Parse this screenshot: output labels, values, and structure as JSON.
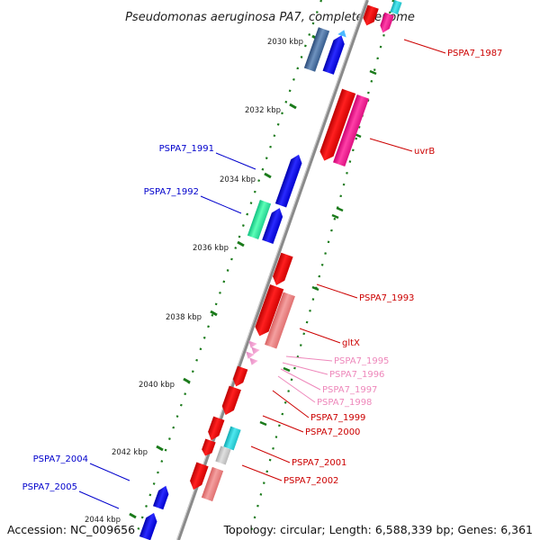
{
  "title": "Pseudomonas aeruginosa PA7, complete genome",
  "accession": "Accession: NC_009656",
  "topology": "Topology: circular; Length: 6,588,339 bp; Genes: 6,361",
  "ticks": [
    "2030 kbp",
    "2032 kbp",
    "2034 kbp",
    "2036 kbp",
    "2038 kbp",
    "2040 kbp",
    "2042 kbp",
    "2044 kbp"
  ],
  "colors": {
    "backbone": "#8a8a8a",
    "tick": "#1a7a1a",
    "forward_label": "#0000cc",
    "reverse_label": "#cc0000",
    "trna_label": "#ee88bb"
  },
  "labels_left": [
    {
      "text": "PSPA7_1991",
      "color": "#0000cc"
    },
    {
      "text": "PSPA7_1992",
      "color": "#0000cc"
    },
    {
      "text": "PSPA7_2004",
      "color": "#0000cc"
    },
    {
      "text": "PSPA7_2005",
      "color": "#0000cc"
    }
  ],
  "labels_right": [
    {
      "text": "PSPA7_1987",
      "color": "#cc0000"
    },
    {
      "text": "uvrB",
      "color": "#cc0000"
    },
    {
      "text": "PSPA7_1993",
      "color": "#cc0000"
    },
    {
      "text": "gltX",
      "color": "#cc0000"
    },
    {
      "text": "PSPA7_1995",
      "color": "#ee88bb"
    },
    {
      "text": "PSPA7_1996",
      "color": "#ee88bb"
    },
    {
      "text": "PSPA7_1997",
      "color": "#ee88bb"
    },
    {
      "text": "PSPA7_1998",
      "color": "#ee88bb"
    },
    {
      "text": "PSPA7_1999",
      "color": "#cc0000"
    },
    {
      "text": "PSPA7_2000",
      "color": "#cc0000"
    },
    {
      "text": "PSPA7_2001",
      "color": "#cc0000"
    },
    {
      "text": "PSPA7_2002",
      "color": "#cc0000"
    }
  ]
}
